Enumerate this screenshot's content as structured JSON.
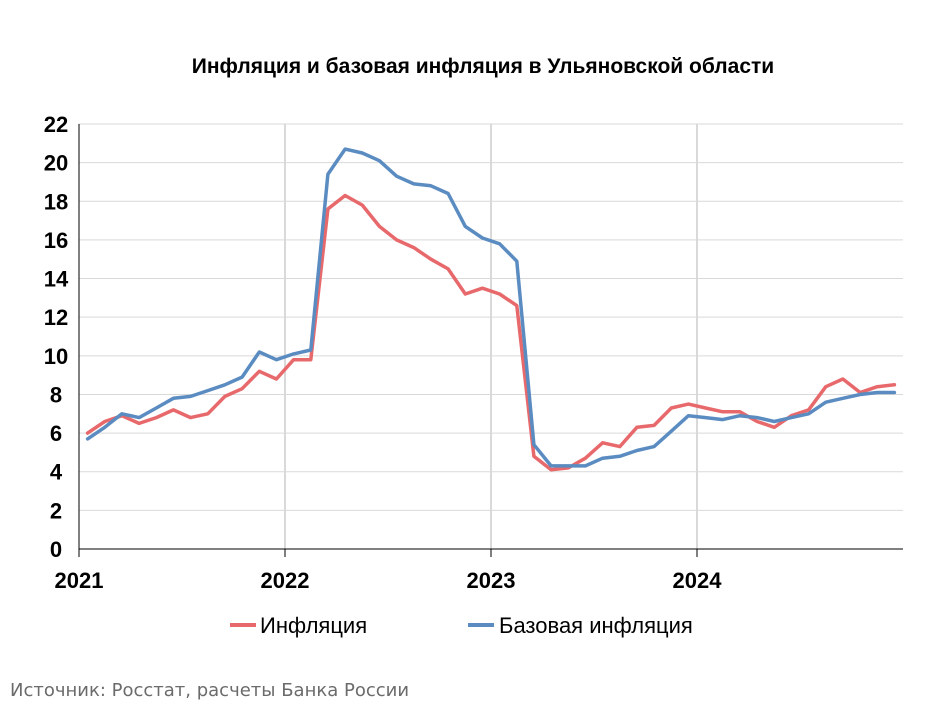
{
  "chart_data": {
    "type": "line",
    "title": "Инфляция и базовая инфляция в Ульяновской области",
    "xlabel": "",
    "ylabel": "",
    "ylim": [
      0,
      22
    ],
    "yticks": [
      0,
      2,
      4,
      6,
      8,
      10,
      12,
      14,
      16,
      18,
      20,
      22
    ],
    "xticks": [
      "2021",
      "2022",
      "2023",
      "2024"
    ],
    "grid": true,
    "legend_position": "bottom",
    "x": [
      "2021-01",
      "2021-02",
      "2021-03",
      "2021-04",
      "2021-05",
      "2021-06",
      "2021-07",
      "2021-08",
      "2021-09",
      "2021-10",
      "2021-11",
      "2021-12",
      "2022-01",
      "2022-02",
      "2022-03",
      "2022-04",
      "2022-05",
      "2022-06",
      "2022-07",
      "2022-08",
      "2022-09",
      "2022-10",
      "2022-11",
      "2022-12",
      "2023-01",
      "2023-02",
      "2023-03",
      "2023-04",
      "2023-05",
      "2023-06",
      "2023-07",
      "2023-08",
      "2023-09",
      "2023-10",
      "2023-11",
      "2023-12",
      "2024-01",
      "2024-02",
      "2024-03",
      "2024-04",
      "2024-05",
      "2024-06",
      "2024-07",
      "2024-08",
      "2024-09",
      "2024-10",
      "2024-11",
      "2024-12"
    ],
    "series": [
      {
        "name": "Инфляция",
        "color": "#e8696b",
        "values": [
          6.0,
          6.6,
          6.9,
          6.5,
          6.8,
          7.2,
          6.8,
          7.0,
          7.9,
          8.3,
          9.2,
          8.8,
          9.8,
          9.8,
          17.6,
          18.3,
          17.8,
          16.7,
          16.0,
          15.6,
          15.0,
          14.5,
          13.2,
          13.5,
          13.2,
          12.6,
          4.8,
          4.1,
          4.2,
          4.7,
          5.5,
          5.3,
          6.3,
          6.4,
          7.3,
          7.5,
          7.3,
          7.1,
          7.1,
          6.6,
          6.3,
          6.9,
          7.2,
          8.4,
          8.8,
          8.1,
          8.4,
          8.5
        ]
      },
      {
        "name": "Базовая инфляция",
        "color": "#5b8cc1",
        "values": [
          5.7,
          6.3,
          7.0,
          6.8,
          7.3,
          7.8,
          7.9,
          8.2,
          8.5,
          8.9,
          10.2,
          9.8,
          10.1,
          10.3,
          19.4,
          20.7,
          20.5,
          20.1,
          19.3,
          18.9,
          18.8,
          18.4,
          16.7,
          16.1,
          15.8,
          14.9,
          5.4,
          4.3,
          4.3,
          4.3,
          4.7,
          4.8,
          5.1,
          5.3,
          6.1,
          6.9,
          6.8,
          6.7,
          6.9,
          6.8,
          6.6,
          6.8,
          7.0,
          7.6,
          7.8,
          8.0,
          8.1,
          8.1
        ]
      }
    ]
  },
  "source": "Источник: Росстат, расчеты Банка России"
}
